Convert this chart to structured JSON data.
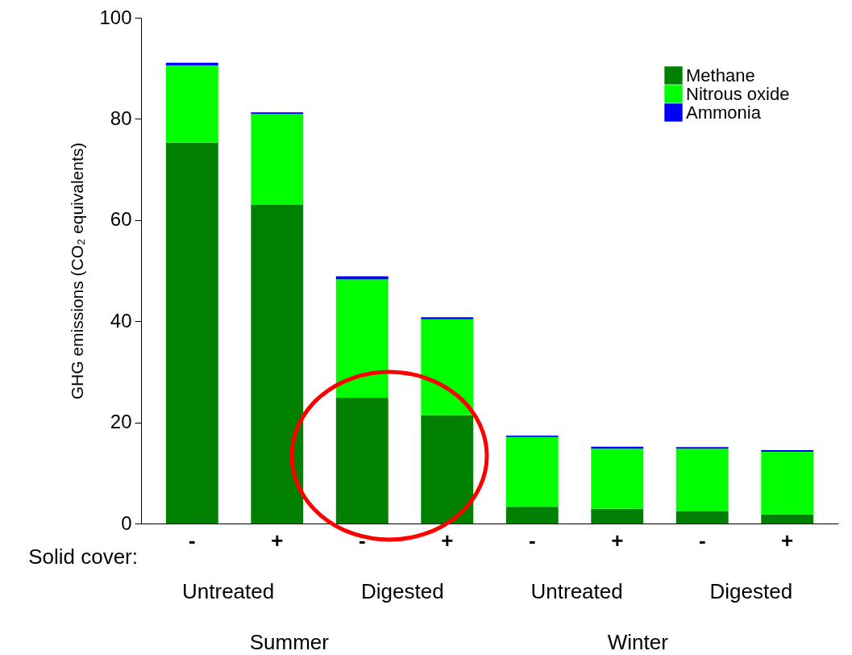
{
  "chart_data": {
    "type": "bar",
    "stacked": true,
    "ylabel": "GHG emissions (CO₂ equivalents)",
    "categories": [
      "-",
      "+",
      "-",
      "+",
      "-",
      "+",
      "-",
      "+"
    ],
    "series": [
      {
        "name": "Methane",
        "color": "#008000",
        "values": [
          75.3,
          63.0,
          24.9,
          21.4,
          3.3,
          2.9,
          2.4,
          1.8
        ]
      },
      {
        "name": "Nitrous oxide",
        "color": "#00ff00",
        "values": [
          15.3,
          18.0,
          23.4,
          19.0,
          13.8,
          11.9,
          12.4,
          12.4
        ]
      },
      {
        "name": "Ammonia",
        "color": "#0000ff",
        "values": [
          0.5,
          0.3,
          0.6,
          0.4,
          0.3,
          0.4,
          0.3,
          0.3
        ]
      }
    ],
    "ylim": [
      0,
      100
    ],
    "yticks": [
      0,
      20,
      40,
      60,
      80,
      100
    ],
    "grid": false,
    "legend": "top right",
    "annotations": [
      "Solid cover:",
      "Untreated",
      "Digested",
      "Untreated",
      "Digested",
      "Summer",
      "Winter"
    ]
  }
}
